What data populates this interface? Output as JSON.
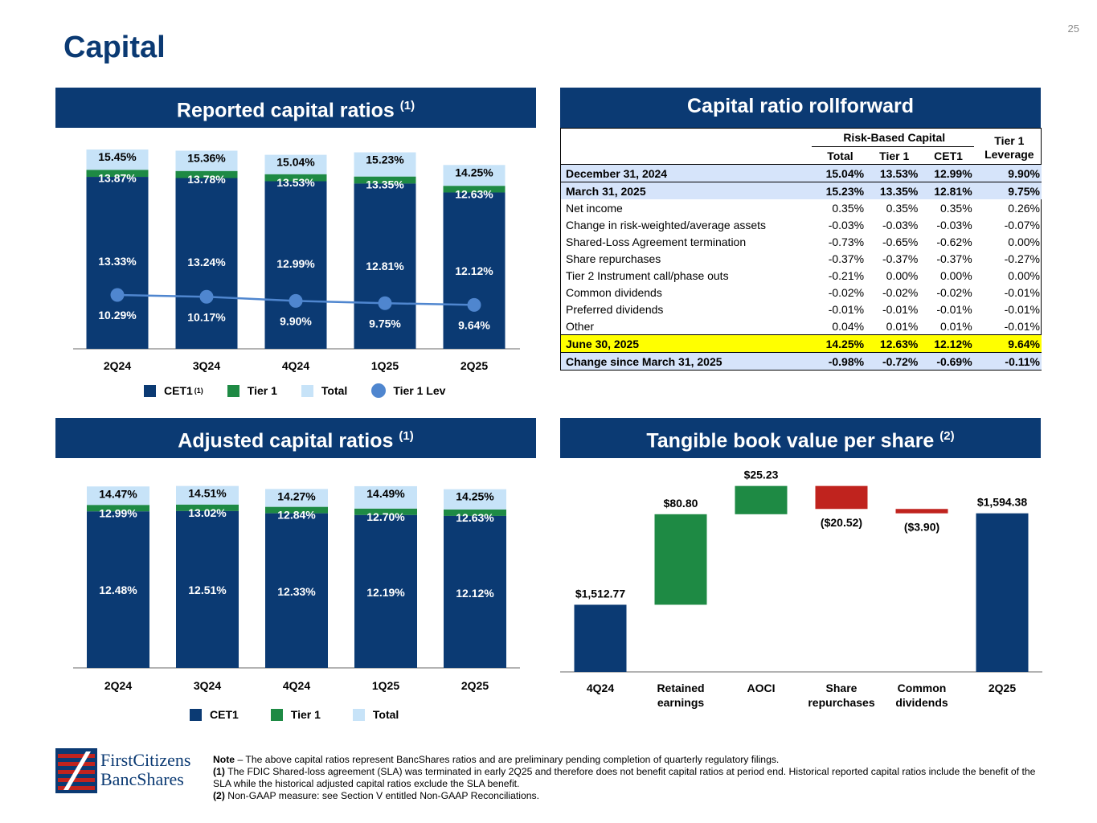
{
  "page_number": "25",
  "title": "Capital",
  "panels": {
    "reported": {
      "title": "Reported capital ratios",
      "sup": "(1)"
    },
    "rollforward": {
      "title": "Capital ratio rollforward"
    },
    "adjusted": {
      "title": "Adjusted capital ratios",
      "sup": "(1)"
    },
    "tbv": {
      "title": "Tangible book value per share",
      "sup": "(2)"
    }
  },
  "legend_reported": {
    "cet1": "CET1",
    "cet1_sup": "(1)",
    "tier1": "Tier 1",
    "total": "Total",
    "tier1_lev": "Tier 1 Lev"
  },
  "legend_adjusted": {
    "cet1": "CET1",
    "tier1": "Tier 1",
    "total": "Total"
  },
  "colors": {
    "navy": "#0b3a73",
    "green": "#1e8a44",
    "light_blue": "#c7e3f8",
    "lev_line": "#4f86cf",
    "red": "#c0231e",
    "yellow": "#ffff00",
    "row_blue": "#d6e4fa"
  },
  "rollforward_table": {
    "group_header": "Risk-Based Capital",
    "tier1_leverage_header": [
      "Tier 1",
      "Leverage"
    ],
    "columns": [
      "Total",
      "Tier 1",
      "CET1"
    ],
    "rows": [
      {
        "label": "December 31, 2024",
        "values": [
          "15.04%",
          "13.53%",
          "12.99%",
          "9.90%"
        ],
        "style": "hl-blue"
      },
      {
        "label": "March 31, 2025",
        "values": [
          "15.23%",
          "13.35%",
          "12.81%",
          "9.75%"
        ],
        "style": "hl-blue"
      },
      {
        "label": "Net income",
        "values": [
          "0.35%",
          "0.35%",
          "0.35%",
          "0.26%"
        ],
        "style": ""
      },
      {
        "label": "Change in risk-weighted/average assets",
        "values": [
          "-0.03%",
          "-0.03%",
          "-0.03%",
          "-0.07%"
        ],
        "style": ""
      },
      {
        "label": "Shared-Loss Agreement termination",
        "values": [
          "-0.73%",
          "-0.65%",
          "-0.62%",
          "0.00%"
        ],
        "style": ""
      },
      {
        "label": "Share repurchases",
        "values": [
          "-0.37%",
          "-0.37%",
          "-0.37%",
          "-0.27%"
        ],
        "style": ""
      },
      {
        "label": "Tier 2 Instrument call/phase outs",
        "values": [
          "-0.21%",
          "0.00%",
          "0.00%",
          "0.00%"
        ],
        "style": ""
      },
      {
        "label": "Common dividends",
        "values": [
          "-0.02%",
          "-0.02%",
          "-0.02%",
          "-0.01%"
        ],
        "style": ""
      },
      {
        "label": "Preferred dividends",
        "values": [
          "-0.01%",
          "-0.01%",
          "-0.01%",
          "-0.01%"
        ],
        "style": ""
      },
      {
        "label": "Other",
        "values": [
          "0.04%",
          "0.01%",
          "0.01%",
          "-0.01%"
        ],
        "style": ""
      },
      {
        "label": "June 30, 2025",
        "values": [
          "14.25%",
          "12.63%",
          "12.12%",
          "9.64%"
        ],
        "style": "hl-yellow"
      },
      {
        "label": "Change since March 31, 2025",
        "values": [
          "-0.98%",
          "-0.72%",
          "-0.69%",
          "-0.11%"
        ],
        "style": "hl-blue"
      }
    ]
  },
  "chart_data": [
    {
      "type": "bar",
      "title": "Reported capital ratios",
      "categories": [
        "2Q24",
        "3Q24",
        "4Q24",
        "1Q25",
        "2Q25"
      ],
      "series": [
        {
          "name": "CET1",
          "values": [
            13.33,
            13.24,
            12.99,
            12.81,
            12.12
          ],
          "labels": [
            "13.33%",
            "13.24%",
            "12.99%",
            "12.81%",
            "12.12%"
          ]
        },
        {
          "name": "Tier 1",
          "values": [
            13.87,
            13.78,
            13.53,
            13.35,
            12.63
          ],
          "labels": [
            "13.87%",
            "13.78%",
            "13.53%",
            "13.35%",
            "12.63%"
          ]
        },
        {
          "name": "Total",
          "values": [
            15.45,
            15.36,
            15.04,
            15.23,
            14.25
          ],
          "labels": [
            "15.45%",
            "15.36%",
            "15.04%",
            "15.23%",
            "14.25%"
          ]
        },
        {
          "name": "Tier 1 Lev",
          "type": "line",
          "values": [
            10.29,
            10.17,
            9.9,
            9.75,
            9.64
          ],
          "labels": [
            "10.29%",
            "10.17%",
            "9.90%",
            "9.75%",
            "9.64%"
          ]
        }
      ],
      "legend": "bottom"
    },
    {
      "type": "bar",
      "title": "Adjusted capital ratios",
      "categories": [
        "2Q24",
        "3Q24",
        "4Q24",
        "1Q25",
        "2Q25"
      ],
      "series": [
        {
          "name": "CET1",
          "values": [
            12.48,
            12.51,
            12.33,
            12.19,
            12.12
          ],
          "labels": [
            "12.48%",
            "12.51%",
            "12.33%",
            "12.19%",
            "12.12%"
          ]
        },
        {
          "name": "Tier 1",
          "values": [
            12.99,
            13.02,
            12.84,
            12.7,
            12.63
          ],
          "labels": [
            "12.99%",
            "13.02%",
            "12.84%",
            "12.70%",
            "12.63%"
          ]
        },
        {
          "name": "Total",
          "values": [
            14.47,
            14.51,
            14.27,
            14.49,
            14.25
          ],
          "labels": [
            "14.47%",
            "14.51%",
            "14.27%",
            "14.49%",
            "14.25%"
          ]
        }
      ],
      "legend": "bottom"
    },
    {
      "type": "bar",
      "subtype": "waterfall",
      "title": "Tangible book value per share",
      "categories": [
        [
          "4Q24"
        ],
        [
          "Retained",
          "earnings"
        ],
        [
          "AOCI"
        ],
        [
          "Share",
          "repurchases"
        ],
        [
          "Common",
          "dividends"
        ],
        [
          "2Q25"
        ]
      ],
      "values": [
        1512.77,
        80.8,
        25.23,
        -20.52,
        -3.9,
        1594.38
      ],
      "labels": [
        "$1,512.77",
        "$80.80",
        "$25.23",
        "($20.52)",
        "($3.90)",
        "$1,594.38"
      ],
      "kinds": [
        "total",
        "delta",
        "delta",
        "delta",
        "delta",
        "total"
      ]
    }
  ],
  "logo": {
    "line1": "FirstCitizens",
    "line2": "BancShares"
  },
  "notes": {
    "note_label": "Note",
    "note_text": " – The above capital ratios represent BancShares ratios and are preliminary pending completion of quarterly regulatory filings.",
    "n1_label": "(1)",
    "n1_text": "  The FDIC Shared-loss agreement (SLA) was terminated in early 2Q25 and therefore does not benefit capital ratios at period end. Historical reported capital ratios include the benefit of the SLA while the historical adjusted capital ratios exclude the SLA benefit.",
    "n2_label": "(2)",
    "n2_text": "  Non-GAAP measure: see Section V entitled Non-GAAP Reconciliations."
  }
}
